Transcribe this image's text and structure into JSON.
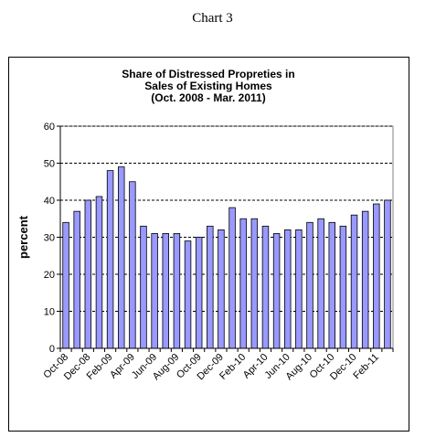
{
  "page_title": "Chart 3",
  "colors": {
    "bar_fill": "#9999ff",
    "bar_stroke": "#000000",
    "grid": "#000000"
  },
  "chart_data": {
    "type": "bar",
    "title": [
      "Share of Distressed Propreties in",
      "Sales of Existing Homes",
      "(Oct. 2008 - Mar. 2011)"
    ],
    "xlabel": "",
    "ylabel": "percent",
    "ylim": [
      0,
      60
    ],
    "yticks": [
      0,
      10,
      20,
      30,
      40,
      50,
      60
    ],
    "grid": "horizontal dashed",
    "legend": "none",
    "categories": [
      "Oct-08",
      "Nov-08",
      "Dec-08",
      "Jan-09",
      "Feb-09",
      "Mar-09",
      "Apr-09",
      "May-09",
      "Jun-09",
      "Jul-09",
      "Aug-09",
      "Sep-09",
      "Oct-09",
      "Nov-09",
      "Dec-09",
      "Jan-10",
      "Feb-10",
      "Mar-10",
      "Apr-10",
      "May-10",
      "Jun-10",
      "Jul-10",
      "Aug-10",
      "Sep-10",
      "Oct-10",
      "Nov-10",
      "Dec-10",
      "Jan-11",
      "Feb-11",
      "Mar-11"
    ],
    "shown_xtick_labels": [
      "Oct-08",
      "Dec-08",
      "Feb-09",
      "Apr-09",
      "Jun-09",
      "Aug-09",
      "Oct-09",
      "Dec-09",
      "Feb-10",
      "Apr-10",
      "Jun-10",
      "Aug-10",
      "Oct-10",
      "Dec-10",
      "Feb-11"
    ],
    "values": [
      34,
      37,
      40,
      41,
      48,
      49,
      45,
      33,
      31,
      31,
      31,
      29,
      30,
      33,
      32,
      38,
      35,
      35,
      33,
      31,
      32,
      32,
      34,
      35,
      34,
      33,
      36,
      37,
      39,
      40
    ]
  }
}
